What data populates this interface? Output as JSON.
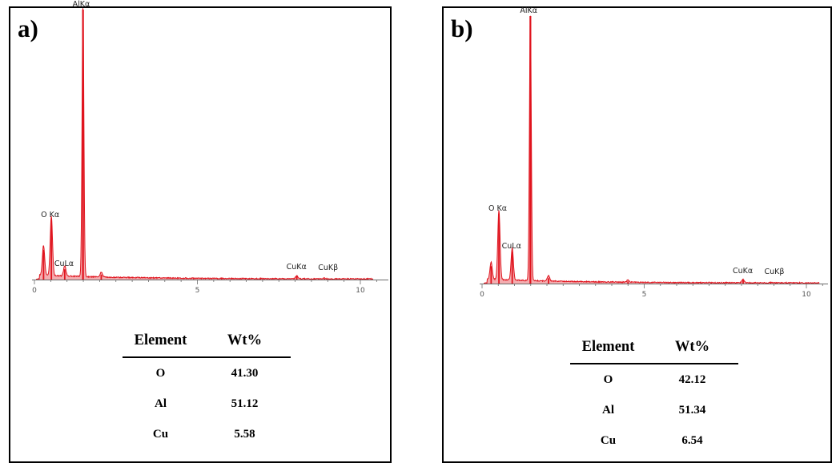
{
  "chart_data": [
    {
      "panel_label": "a)",
      "type": "line",
      "x_ticks": [
        0,
        5,
        10
      ],
      "xlim": [
        0,
        10.5
      ],
      "peaks": [
        {
          "x": 0.28,
          "h": 0.11
        },
        {
          "x": 0.52,
          "h": 0.22,
          "label": "O Kα"
        },
        {
          "x": 0.93,
          "h": 0.038,
          "label": "CuLα"
        },
        {
          "x": 1.49,
          "h": 1.0,
          "label": "AlKα"
        },
        {
          "x": 2.05,
          "h": 0.018
        },
        {
          "x": 8.05,
          "h": 0.012,
          "label": "CuKα"
        },
        {
          "x": 8.9,
          "h": 0.003,
          "label": "CuKβ"
        }
      ],
      "table": {
        "headers": [
          "Element",
          "Wt%"
        ],
        "rows": [
          [
            "O",
            "41.30"
          ],
          [
            "Al",
            "51.12"
          ],
          [
            "Cu",
            "5.58"
          ]
        ]
      }
    },
    {
      "panel_label": "b)",
      "type": "line",
      "x_ticks": [
        0,
        5,
        10
      ],
      "xlim": [
        0,
        10.5
      ],
      "peaks": [
        {
          "x": 0.28,
          "h": 0.065
        },
        {
          "x": 0.52,
          "h": 0.26,
          "label": "O Kα"
        },
        {
          "x": 0.93,
          "h": 0.12,
          "label": "CuLα"
        },
        {
          "x": 1.49,
          "h": 1.0,
          "label": "AlKα"
        },
        {
          "x": 2.05,
          "h": 0.02
        },
        {
          "x": 4.5,
          "h": 0.008
        },
        {
          "x": 8.05,
          "h": 0.013,
          "label": "CuKα"
        },
        {
          "x": 8.9,
          "h": 0.003,
          "label": "CuKβ"
        }
      ],
      "table": {
        "headers": [
          "Element",
          "Wt%"
        ],
        "rows": [
          [
            "O",
            "42.12"
          ],
          [
            "Al",
            "51.34"
          ],
          [
            "Cu",
            "6.54"
          ]
        ]
      }
    }
  ],
  "colors": {
    "spectrum": "#e0141e",
    "axis": "#6b6b6b"
  }
}
